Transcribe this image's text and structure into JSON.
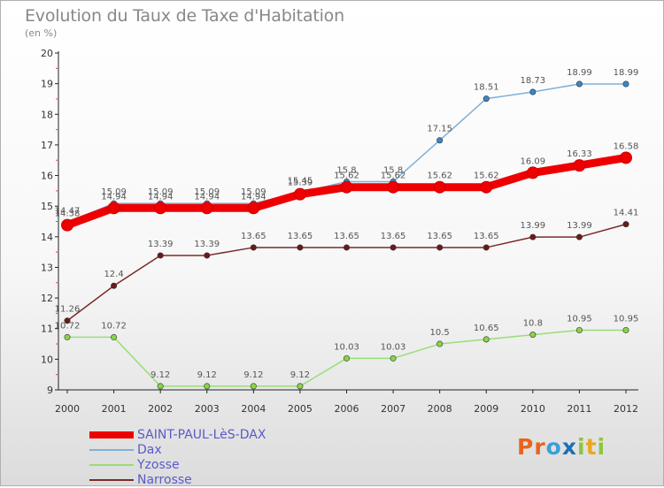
{
  "header": {
    "title": "Evolution du Taux de Taxe d'Habitation",
    "subtitle": "(en %)"
  },
  "logo": {
    "letters": [
      "P",
      "r",
      "o",
      "x",
      "i",
      "t",
      "i"
    ],
    "colors": [
      "#e8641e",
      "#e8641e",
      "#3aa0d8",
      "#1e6fb4",
      "#8cc63f",
      "#e8a81e",
      "#8cc63f"
    ]
  },
  "chart_data": {
    "type": "line",
    "title": "Evolution du Taux de Taxe d'Habitation",
    "ylabel": "(en %)",
    "xlabel": "",
    "x": [
      "2000",
      "2001",
      "2002",
      "2003",
      "2004",
      "2005",
      "2006",
      "2007",
      "2008",
      "2009",
      "2010",
      "2011",
      "2012"
    ],
    "yticks": [
      "9",
      "10",
      "11",
      "12",
      "13",
      "14",
      "15",
      "16",
      "17",
      "18",
      "19",
      "20"
    ],
    "ylim": [
      9,
      20
    ],
    "grid": false,
    "legend": "bottom-left",
    "series": [
      {
        "name": "SAINT-PAUL-LèS-DAX",
        "color": "#ee0000",
        "marker_fill": "#ee0000",
        "values": [
          14.38,
          14.94,
          14.94,
          14.94,
          14.94,
          15.39,
          15.62,
          15.62,
          15.62,
          15.62,
          16.09,
          16.33,
          16.58
        ],
        "labels": [
          "14.38",
          "14.94",
          "14.94",
          "14.94",
          "14.94",
          "15.39",
          "15.62",
          "15.62",
          "15.62",
          "15.62",
          "16.09",
          "16.33",
          "16.58"
        ]
      },
      {
        "name": "Dax",
        "color": "#7fb0d8",
        "marker_fill": "#3a86c8",
        "values": [
          14.47,
          15.09,
          15.09,
          15.09,
          15.09,
          15.45,
          15.8,
          15.8,
          17.15,
          18.51,
          18.73,
          18.99,
          18.99
        ],
        "labels": [
          "14.47",
          "15.09",
          "15.09",
          "15.09",
          "15.09",
          "15.45",
          "15.8",
          "15.8",
          "17.15",
          "18.51",
          "18.73",
          "18.99",
          "18.99"
        ]
      },
      {
        "name": "Yzosse",
        "color": "#99dd77",
        "marker_fill": "#88d44a",
        "values": [
          10.72,
          10.72,
          9.12,
          9.12,
          9.12,
          9.12,
          10.03,
          10.03,
          10.5,
          10.65,
          10.8,
          10.95,
          10.95
        ],
        "labels": [
          "10.72",
          "10.72",
          "9.12",
          "9.12",
          "9.12",
          "9.12",
          "10.03",
          "10.03",
          "10.5",
          "10.65",
          "10.8",
          "10.95",
          "10.95"
        ]
      },
      {
        "name": "Narrosse",
        "color": "#7a2a2a",
        "marker_fill": "#6a1a1a",
        "values": [
          11.26,
          12.4,
          13.39,
          13.39,
          13.65,
          13.65,
          13.65,
          13.65,
          13.65,
          13.65,
          13.99,
          13.99,
          14.41
        ],
        "labels": [
          "11.26",
          "12.4",
          "13.39",
          "13.39",
          "13.65",
          "13.65",
          "13.65",
          "13.65",
          "13.65",
          "13.65",
          "13.99",
          "13.99",
          "14.41"
        ]
      }
    ]
  }
}
